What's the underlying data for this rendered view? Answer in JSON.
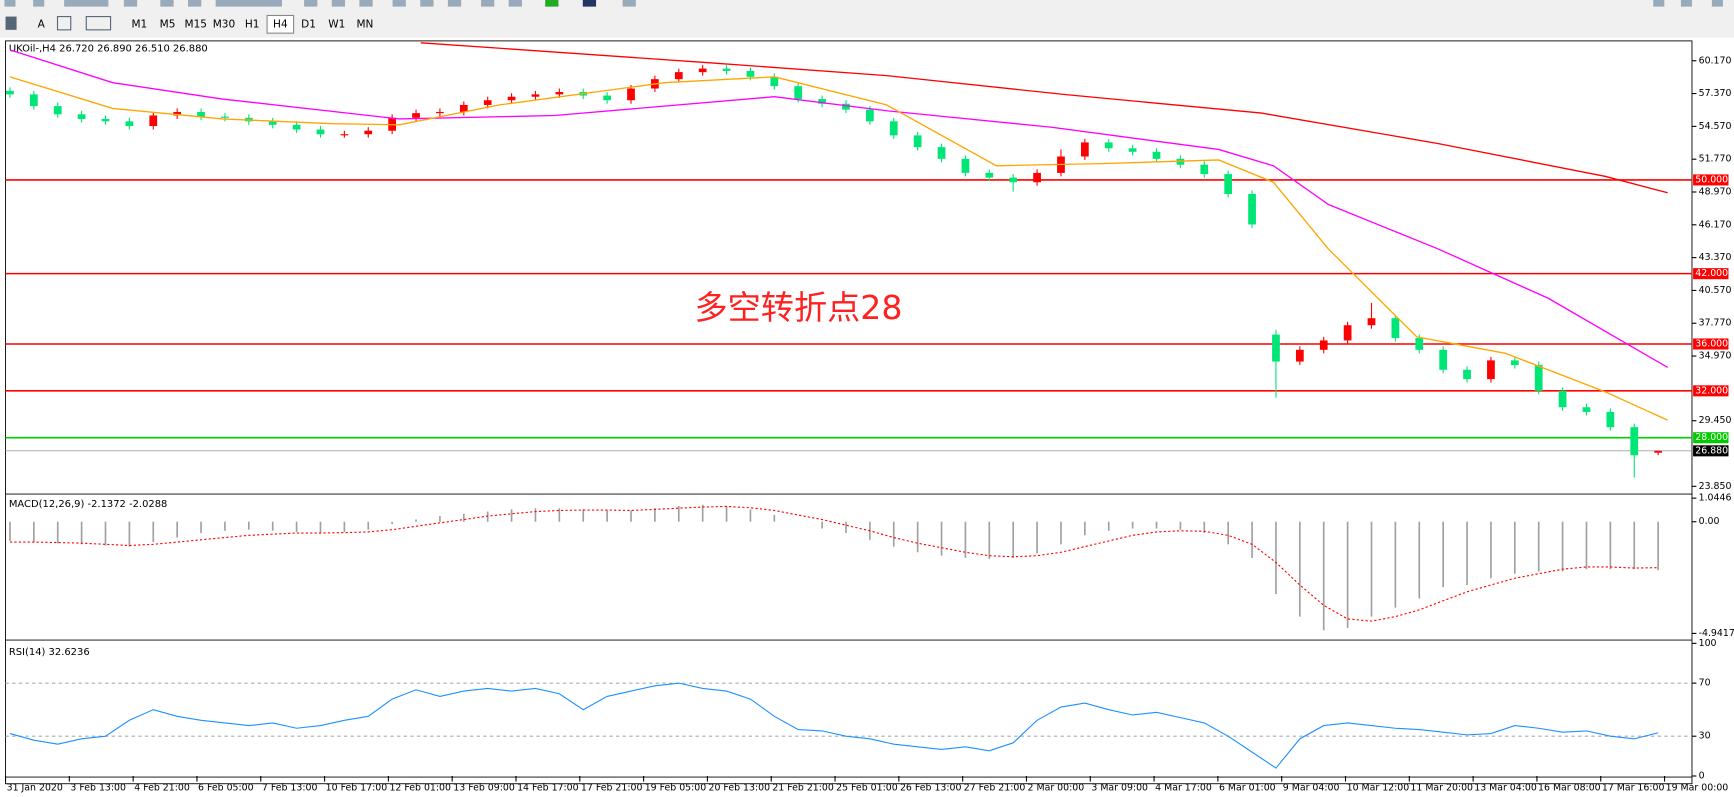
{
  "toolbar": {
    "text_tool": "A",
    "timeframes": [
      "M1",
      "M5",
      "M15",
      "M30",
      "H1",
      "H4",
      "D1",
      "W1",
      "MN"
    ],
    "selected": 5
  },
  "chart_data": [
    {
      "type": "candlestick",
      "title": "UKOil-,H4  26.720 26.890 26.510 26.880",
      "annotation": "多空转折点28",
      "up_color": "#ff0000",
      "down_color": "#00e676",
      "ylim": [
        23.28,
        61.77
      ],
      "yticks": [
        {
          "value": 60.17,
          "label": "60.170"
        },
        {
          "value": 57.37,
          "label": "57.370"
        },
        {
          "value": 54.57,
          "label": "54.570"
        },
        {
          "value": 51.77,
          "label": "51.770"
        },
        {
          "value": 48.97,
          "label": "48.970"
        },
        {
          "value": 46.17,
          "label": "46.170"
        },
        {
          "value": 43.37,
          "label": "43.370"
        },
        {
          "value": 40.57,
          "label": "40.570"
        },
        {
          "value": 37.77,
          "label": "37.770"
        },
        {
          "value": 34.97,
          "label": "34.970"
        },
        {
          "value": 29.45,
          "label": "29.450"
        },
        {
          "value": 23.85,
          "label": "23.850"
        }
      ],
      "levels": [
        {
          "value": 50,
          "label": "50.000",
          "color": "#ff0000",
          "label_color": "#ff0000"
        },
        {
          "value": 42,
          "label": "42.000",
          "color": "#ff0000",
          "label_color": "#ff0000"
        },
        {
          "value": 36,
          "label": "36.000",
          "color": "#ff0000",
          "label_color": "#ff0000"
        },
        {
          "value": 32,
          "label": "32.000",
          "color": "#ff0000",
          "label_color": "#ff0000"
        },
        {
          "value": 28,
          "label": "28.000",
          "color": "#00cc00",
          "label_color": "#00cc00"
        },
        {
          "value": 26.88,
          "label": "26.880",
          "color": "#a0a0a0",
          "label_color": "#000000"
        }
      ],
      "x_tick_labels": [
        "31 Jan 2020",
        "3 Feb 13:00",
        "4 Feb 21:00",
        "6 Feb 05:00",
        "7 Feb 13:00",
        "10 Feb 17:00",
        "12 Feb 01:00",
        "13 Feb 09:00",
        "14 Feb 17:00",
        "17 Feb 21:00",
        "19 Feb 05:00",
        "20 Feb 13:00",
        "21 Feb 21:00",
        "25 Feb 01:00",
        "26 Feb 13:00",
        "27 Feb 21:00",
        "2 Mar 00:00",
        "3 Mar 09:00",
        "4 Mar 17:00",
        "6 Mar 01:00",
        "9 Mar 04:00",
        "10 Mar 12:00",
        "11 Mar 20:00",
        "13 Mar 04:00",
        "16 Mar 08:00",
        "17 Mar 16:00",
        "19 Mar 00:00"
      ],
      "open": [
        57.6,
        57.3,
        56.3,
        55.6,
        55.2,
        55.0,
        54.6,
        55.5,
        55.8,
        55.4,
        55.3,
        55.0,
        54.7,
        54.3,
        53.9,
        53.9,
        54.2,
        55.3,
        55.7,
        55.8,
        56.4,
        56.8,
        57.1,
        57.3,
        57.5,
        57.2,
        56.8,
        57.8,
        58.6,
        59.2,
        59.5,
        59.3,
        58.8,
        58.0,
        56.9,
        56.5,
        56.0,
        55.0,
        53.8,
        52.8,
        51.8,
        50.6,
        50.2,
        49.8,
        50.6,
        52.0,
        53.2,
        52.7,
        52.4,
        51.8,
        51.3,
        50.5,
        48.8,
        36.8,
        34.5,
        35.5,
        36.3,
        37.6,
        38.2,
        36.5,
        35.5,
        33.8,
        33.0,
        34.6,
        34.2,
        32.0,
        30.6,
        30.2,
        28.9,
        26.72
      ],
      "high": [
        57.9,
        57.6,
        56.6,
        55.9,
        55.5,
        55.3,
        55.8,
        56.1,
        56.1,
        55.7,
        55.6,
        55.3,
        55.0,
        54.6,
        54.2,
        54.5,
        55.6,
        56.0,
        56.1,
        56.7,
        57.1,
        57.4,
        57.6,
        57.8,
        57.8,
        57.5,
        58.1,
        58.9,
        59.5,
        59.8,
        59.8,
        59.6,
        59.1,
        58.3,
        57.2,
        56.8,
        56.3,
        55.3,
        54.1,
        53.1,
        52.1,
        50.9,
        50.5,
        50.9,
        52.6,
        53.5,
        53.5,
        53.0,
        52.7,
        52.1,
        51.6,
        50.8,
        49.1,
        37.2,
        35.8,
        36.6,
        37.9,
        39.5,
        38.5,
        36.8,
        35.8,
        34.1,
        34.9,
        34.9,
        34.5,
        32.3,
        30.9,
        30.5,
        29.2,
        26.89
      ],
      "low": [
        57.0,
        56.0,
        55.3,
        54.9,
        54.7,
        54.3,
        54.3,
        55.2,
        55.1,
        55.0,
        54.7,
        54.4,
        54.0,
        53.6,
        53.6,
        53.6,
        53.9,
        55.0,
        55.4,
        55.5,
        56.1,
        56.5,
        56.8,
        57.0,
        56.9,
        56.5,
        56.5,
        57.5,
        58.3,
        58.9,
        59.0,
        58.5,
        57.7,
        56.6,
        56.2,
        55.7,
        54.7,
        53.5,
        52.5,
        51.5,
        50.3,
        49.9,
        49.0,
        49.5,
        50.3,
        51.7,
        52.4,
        52.1,
        51.5,
        51.0,
        50.2,
        48.5,
        45.9,
        31.4,
        34.2,
        35.2,
        36.0,
        37.3,
        36.2,
        35.2,
        33.5,
        32.7,
        32.7,
        33.9,
        31.7,
        30.3,
        29.9,
        28.6,
        24.6,
        26.51
      ],
      "close": [
        57.3,
        56.3,
        55.6,
        55.2,
        55.0,
        54.6,
        55.5,
        55.8,
        55.4,
        55.3,
        55.0,
        54.7,
        54.3,
        53.9,
        53.9,
        54.2,
        55.3,
        55.7,
        55.8,
        56.4,
        56.8,
        57.1,
        57.3,
        57.5,
        57.2,
        56.8,
        57.8,
        58.6,
        59.2,
        59.5,
        59.3,
        58.8,
        58.0,
        56.9,
        56.5,
        56.0,
        55.0,
        53.8,
        52.8,
        51.8,
        50.6,
        50.2,
        49.8,
        50.6,
        52.0,
        53.2,
        52.7,
        52.4,
        51.8,
        51.3,
        50.5,
        48.8,
        46.2,
        34.5,
        35.5,
        36.3,
        37.6,
        38.2,
        36.5,
        35.5,
        33.8,
        33.0,
        34.6,
        34.2,
        32.0,
        30.6,
        30.2,
        28.9,
        26.5,
        26.88
      ],
      "series": [
        {
          "color": "#ff0000",
          "x": [
            17.2,
            29.3,
            36.7,
            44.1,
            52.4,
            59.8,
            66.8,
            69.4
          ],
          "values": [
            61.7,
            60.0,
            58.9,
            57.3,
            55.7,
            53.1,
            50.3,
            48.9
          ]
        },
        {
          "color": "#ff00ff",
          "x": [
            0,
            4.3,
            8.9,
            16.3,
            22.8,
            32,
            36.7,
            43.6,
            50.6,
            52.9,
            55.2,
            59.8,
            64.4,
            69.4
          ],
          "values": [
            61.1,
            58.3,
            56.9,
            55.2,
            55.5,
            57.1,
            55.9,
            54.5,
            52.6,
            51.2,
            47.9,
            44.1,
            39.9,
            34.0
          ]
        },
        {
          "color": "#ffa500",
          "x": [
            0,
            4.3,
            8.9,
            13.5,
            16.3,
            20.5,
            27.4,
            32,
            36.7,
            41.3,
            45.9,
            50.6,
            52.9,
            55.2,
            58.9,
            62.6,
            66.8,
            69.4
          ],
          "values": [
            58.8,
            56.1,
            55.2,
            54.8,
            54.7,
            56.4,
            58.3,
            58.8,
            56.4,
            51.2,
            51.4,
            51.7,
            49.8,
            44.1,
            36.6,
            35.2,
            31.9,
            29.5
          ]
        }
      ]
    },
    {
      "type": "macd",
      "title": "MACD(12,26,9) -2.1372 -2.0288",
      "ylim": [
        -5.186,
        1.174
      ],
      "yticks": [
        1.0446,
        {
          "value": 0,
          "label": "0.00"
        },
        -4.9417
      ],
      "hist_color": "#a0a0a0",
      "signal_color": "#ff0000",
      "values": [
        -0.85,
        -0.9,
        -0.95,
        -1.0,
        -1.05,
        -1.1,
        -0.9,
        -0.7,
        -0.5,
        -0.4,
        -0.35,
        -0.4,
        -0.45,
        -0.5,
        -0.45,
        -0.35,
        -0.1,
        0.1,
        0.25,
        0.35,
        0.45,
        0.55,
        0.6,
        0.6,
        0.55,
        0.5,
        0.5,
        0.6,
        0.7,
        0.75,
        0.7,
        0.55,
        0.3,
        0.0,
        -0.3,
        -0.5,
        -0.8,
        -1.1,
        -1.35,
        -1.5,
        -1.6,
        -1.65,
        -1.6,
        -1.4,
        -1.0,
        -0.6,
        -0.4,
        -0.3,
        -0.3,
        -0.35,
        -0.5,
        -1.0,
        -1.6,
        -3.2,
        -4.2,
        -4.8,
        -4.7,
        -4.2,
        -3.8,
        -3.4,
        -2.9,
        -2.8,
        -2.5,
        -2.3,
        -2.2,
        -2.2,
        -2.1,
        -2.1,
        -2.1,
        -2.14
      ],
      "signal": [
        -0.9,
        -0.9,
        -0.92,
        -0.95,
        -1.0,
        -1.05,
        -1.0,
        -0.9,
        -0.8,
        -0.7,
        -0.6,
        -0.55,
        -0.5,
        -0.5,
        -0.48,
        -0.45,
        -0.35,
        -0.2,
        -0.05,
        0.1,
        0.25,
        0.35,
        0.45,
        0.5,
        0.52,
        0.52,
        0.5,
        0.55,
        0.6,
        0.65,
        0.68,
        0.62,
        0.5,
        0.3,
        0.1,
        -0.15,
        -0.4,
        -0.7,
        -0.95,
        -1.15,
        -1.35,
        -1.5,
        -1.55,
        -1.5,
        -1.35,
        -1.1,
        -0.85,
        -0.6,
        -0.45,
        -0.4,
        -0.42,
        -0.6,
        -1.0,
        -1.8,
        -2.8,
        -3.7,
        -4.3,
        -4.4,
        -4.2,
        -3.9,
        -3.5,
        -3.1,
        -2.8,
        -2.5,
        -2.3,
        -2.1,
        -2.0,
        -2.0,
        -2.05,
        -2.03
      ]
    },
    {
      "type": "line",
      "title": "RSI(14) 32.6236",
      "ylim": [
        0,
        100
      ],
      "yticks": [
        100,
        70,
        30,
        0
      ],
      "grid": "dashed",
      "color": "#1e90ff",
      "values": [
        32,
        27,
        24,
        28,
        30,
        42,
        50,
        45,
        42,
        40,
        38,
        40,
        36,
        38,
        42,
        45,
        58,
        65,
        60,
        64,
        66,
        64,
        66,
        62,
        50,
        60,
        64,
        68,
        70,
        66,
        64,
        58,
        45,
        35,
        34,
        30,
        28,
        24,
        22,
        20,
        22,
        19,
        25,
        42,
        52,
        55,
        50,
        46,
        48,
        44,
        40,
        30,
        18,
        6,
        28,
        38,
        40,
        38,
        36,
        35,
        33,
        31,
        32,
        38,
        36,
        33,
        34,
        30,
        28,
        32.6
      ]
    }
  ]
}
